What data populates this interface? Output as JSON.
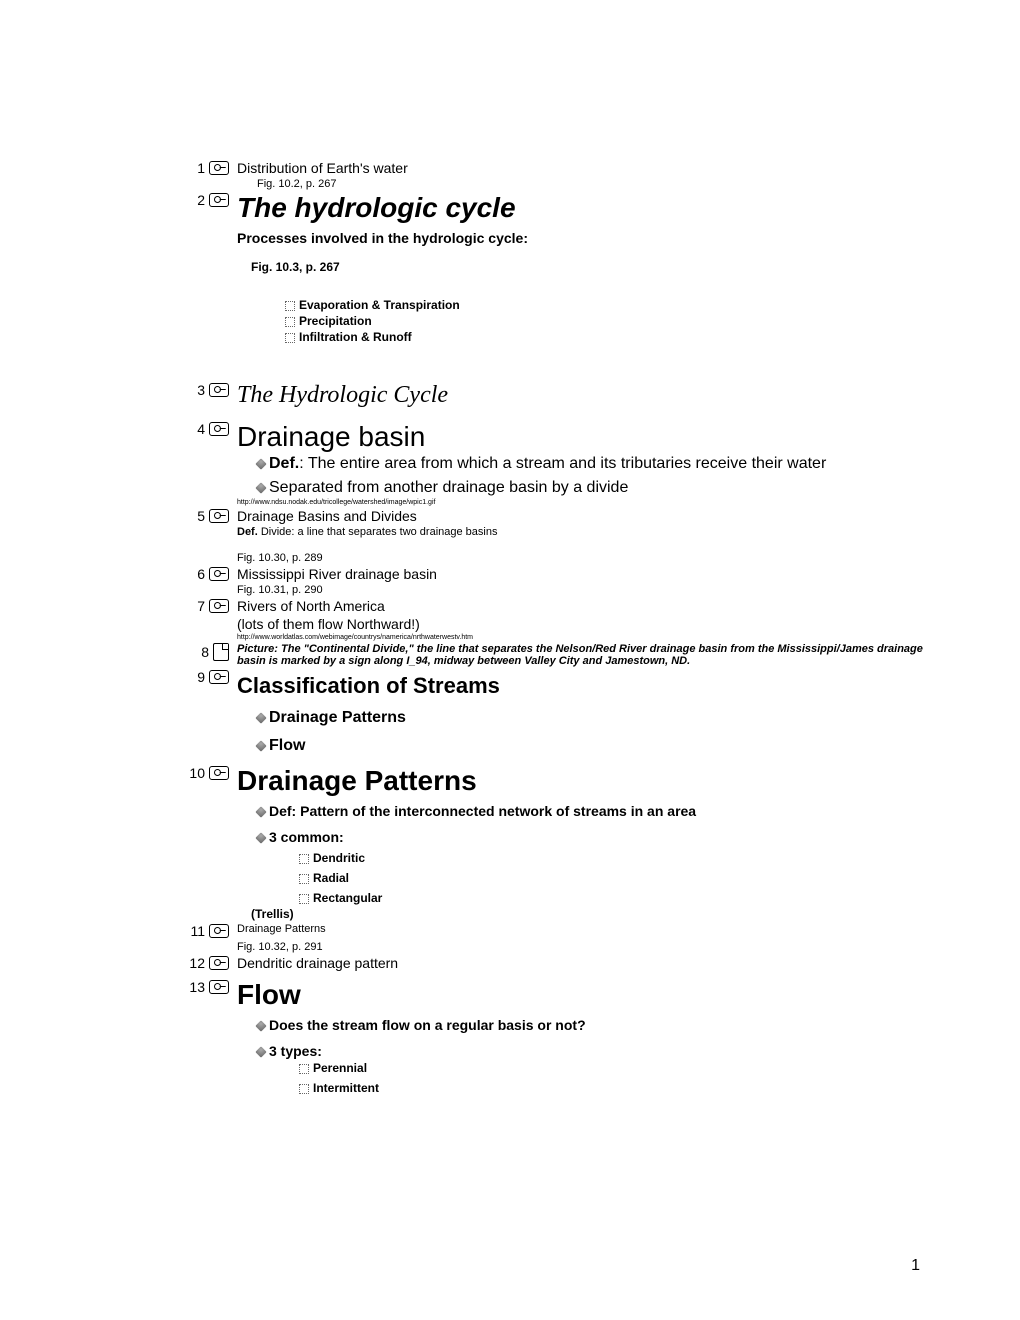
{
  "items": [
    {
      "num": "1",
      "icon": "slide",
      "title": "Distribution of Earth's water",
      "title_class": "body-14"
    },
    {
      "sub": true,
      "text": "Fig. 10.2, p. 267",
      "class": "body-11 indent-1"
    },
    {
      "num": "2",
      "icon": "slide",
      "title": "The hydrologic cycle",
      "title_class": "title-big-italic"
    },
    {
      "sub": true,
      "text": "Processes involved in the hydrologic cycle:",
      "class": "body-14 bold mt-4"
    },
    {
      "sub": true,
      "text": "Fig. 10.3, p. 267",
      "class": "body-12 bold indent-1 mt-12 mb-4",
      "inner_pad": 14,
      "spacer_after": 10
    },
    {
      "sub": true,
      "bullet": "square",
      "text": "Evaporation & Transpiration",
      "class": "body-12 bold indent-2 mt-8"
    },
    {
      "sub": true,
      "bullet": "square",
      "text": "Precipitation",
      "class": "body-12 bold indent-2"
    },
    {
      "sub": true,
      "bullet": "square",
      "text": "Infiltration & Runoff",
      "class": "body-12 bold indent-2",
      "spacer_after": 36
    },
    {
      "num": "3",
      "icon": "slide",
      "title": "The Hydrologic Cycle",
      "title_class": "title-serif-italic",
      "spacer_after": 10
    },
    {
      "num": "4",
      "icon": "slide",
      "title": "Drainage basin",
      "title_class": "title-big"
    },
    {
      "sub": true,
      "bullet": "diamond",
      "rich": [
        {
          "t": "Def.",
          "b": true
        },
        {
          "t": ": The entire area from which a stream and its tributaries receive their water"
        }
      ],
      "class": "body-16 indent-1",
      "hang": true
    },
    {
      "sub": true,
      "bullet": "diamond",
      "text": "Separated from another drainage basin by a divide",
      "class": "body-16 indent-1 mt-4"
    },
    {
      "sub": true,
      "text": "http://www.ndsu.nodak.edu/tricollege/watershed/image/wpic1.gif",
      "class": "tiny"
    },
    {
      "num": "5",
      "icon": "slide",
      "title": "Drainage Basins and Divides",
      "title_class": "body-14"
    },
    {
      "sub": true,
      "rich": [
        {
          "t": "Def.",
          "b": true
        },
        {
          "t": " Divide: a line that separates two drainage basins"
        }
      ],
      "class": "body-11"
    },
    {
      "sub": true,
      "text": "Fig. 10.30, p. 289",
      "class": "body-11 mt-12"
    },
    {
      "num": "6",
      "icon": "slide",
      "title": "Mississippi River drainage basin",
      "title_class": "body-14"
    },
    {
      "sub": true,
      "text": "Fig. 10.31, p. 290",
      "class": "body-11"
    },
    {
      "num": "7",
      "icon": "slide",
      "title": "Rivers of North America",
      "title_class": "body-14"
    },
    {
      "sub": true,
      "text": "(lots of them flow Northward!)",
      "class": "body-14"
    },
    {
      "sub": true,
      "text": "http://www.worldatlas.com/webimage/countrys/namerica/nrthwaterwestv.htm",
      "class": "tiny"
    },
    {
      "num": "8",
      "icon": "page",
      "title": "Picture: The \"Continental Divide,\" the line that separates the Nelson/Red River drainage basin from the Mississippi/James drainage basin is marked by a sign along I_94, midway between Valley City and Jamestown, ND.",
      "title_class": "body-11 bold italic"
    },
    {
      "num": "9",
      "icon": "slide",
      "title": "Classification of Streams",
      "title_class": "title-bold-22 mt-4"
    },
    {
      "sub": true,
      "bullet": "diamond",
      "text": "Drainage Patterns",
      "class": "body-16 bold indent-1 mt-8"
    },
    {
      "sub": true,
      "bullet": "diamond",
      "text": "Flow",
      "class": "body-16 bold indent-1 mt-8",
      "spacer_after": 8
    },
    {
      "num": "10",
      "icon": "slide",
      "title": "Drainage Patterns",
      "title_class": "title-bold-28"
    },
    {
      "sub": true,
      "bullet": "diamond",
      "text": "Def: Pattern of the interconnected network of streams in an area",
      "class": "body-14 bold indent-1 mt-4"
    },
    {
      "sub": true,
      "bullet": "diamond",
      "text": "3 common:",
      "class": "body-14 bold indent-1 mt-8"
    },
    {
      "sub": true,
      "bullet": "square",
      "text": "Dendritic",
      "class": "body-12 bold indent-3 mt-4"
    },
    {
      "sub": true,
      "bullet": "square",
      "text": "Radial",
      "class": "body-12 bold indent-3 mt-4"
    },
    {
      "sub": true,
      "bullet": "square",
      "text": "Rectangular",
      "class": "body-12 bold indent-3 mt-4"
    },
    {
      "sub": true,
      "text": "(Trellis)",
      "class": "body-12 bold indent-3",
      "inner_pad": 14
    },
    {
      "num": "11",
      "icon": "slide",
      "title": "Drainage Patterns",
      "title_class": "body-11"
    },
    {
      "sub": true,
      "text": "Fig. 10.32, p. 291",
      "class": "body-11"
    },
    {
      "num": "12",
      "icon": "slide",
      "title": "Dendritic drainage pattern",
      "title_class": "body-14",
      "spacer_after": 6
    },
    {
      "num": "13",
      "icon": "slide",
      "title": "Flow",
      "title_class": "title-bold-28"
    },
    {
      "sub": true,
      "bullet": "diamond",
      "text": "Does the stream flow on a regular basis or not?",
      "class": "body-14 bold indent-1 mt-4"
    },
    {
      "sub": true,
      "bullet": "diamond",
      "text": "3 types:",
      "class": "body-14 bold indent-1 mt-8"
    },
    {
      "sub": true,
      "bullet": "square",
      "text": "Perennial",
      "class": "body-12 bold indent-3"
    },
    {
      "sub": true,
      "bullet": "square",
      "text": "Intermittent",
      "class": "body-12 bold indent-3 mt-4"
    }
  ],
  "page_number": "1"
}
